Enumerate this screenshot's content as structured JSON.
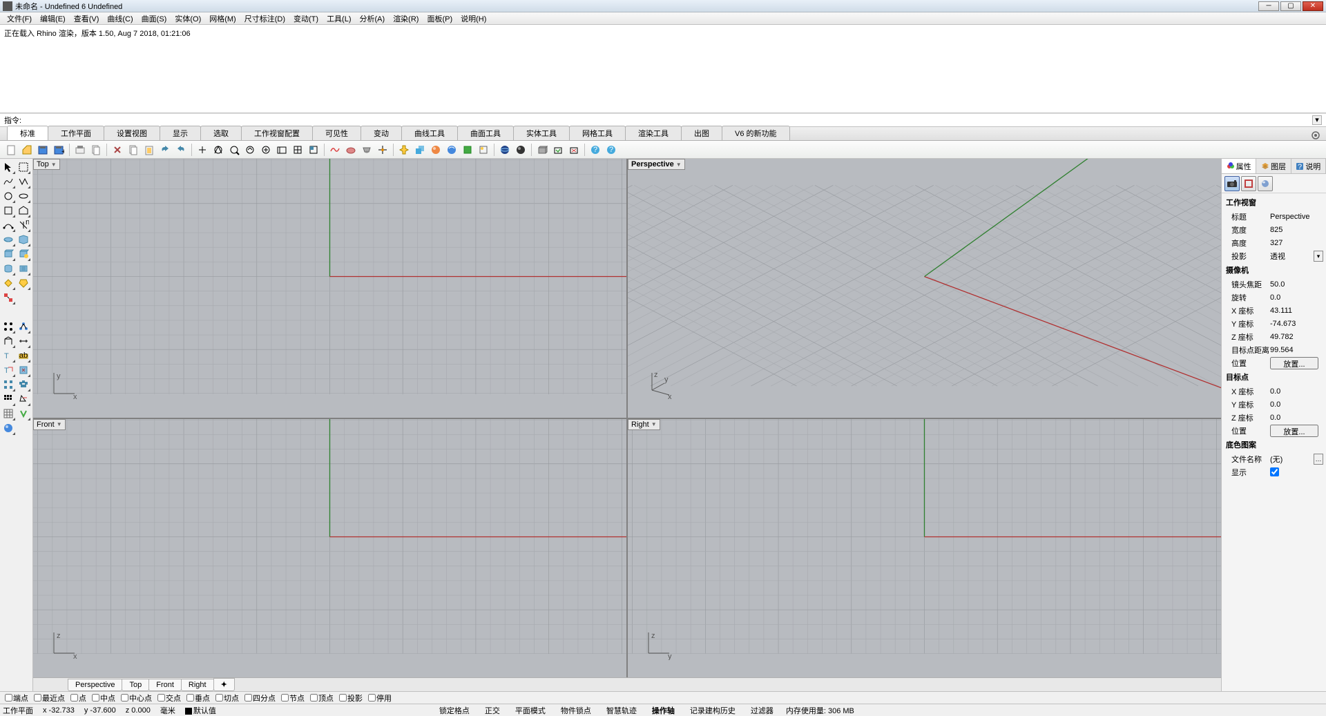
{
  "window": {
    "title": "未命名 - Undefined 6 Undefined"
  },
  "menubar": [
    "文件(F)",
    "编辑(E)",
    "查看(V)",
    "曲线(C)",
    "曲面(S)",
    "实体(O)",
    "网格(M)",
    "尺寸标注(D)",
    "变动(T)",
    "工具(L)",
    "分析(A)",
    "渲染(R)",
    "面板(P)",
    "说明(H)"
  ],
  "command_history": "正在载入 Rhino 渲染，版本 1.50, Aug  7 2018, 01:21:06",
  "command_prompt": "指令:",
  "toolbar_tabs": [
    "标准",
    "工作平面",
    "设置视图",
    "显示",
    "选取",
    "工作视窗配置",
    "可见性",
    "变动",
    "曲线工具",
    "曲面工具",
    "实体工具",
    "网格工具",
    "渲染工具",
    "出图",
    "V6 的新功能"
  ],
  "viewports": {
    "top_left": "Top",
    "top_right": "Perspective",
    "bottom_left": "Front",
    "bottom_right": "Right",
    "active": "Perspective"
  },
  "viewport_tabs": [
    "Perspective",
    "Top",
    "Front",
    "Right"
  ],
  "right_panel": {
    "tabs": [
      {
        "icon": "circle-multi",
        "label": "属性"
      },
      {
        "icon": "layers",
        "label": "图层"
      },
      {
        "icon": "help",
        "label": "说明"
      }
    ],
    "sections": {
      "viewport_title": "工作视窗",
      "viewport": {
        "title_label": "标题",
        "title_value": "Perspective",
        "width_label": "宽度",
        "width_value": "825",
        "height_label": "高度",
        "height_value": "327",
        "projection_label": "投影",
        "projection_value": "透视"
      },
      "camera_title": "摄像机",
      "camera": {
        "focal_label": "镜头焦距",
        "focal_value": "50.0",
        "rotation_label": "旋转",
        "rotation_value": "0.0",
        "x_label": "X 座标",
        "x_value": "43.111",
        "y_label": "Y 座标",
        "y_value": "-74.673",
        "z_label": "Z 座标",
        "z_value": "49.782",
        "dist_label": "目标点距离",
        "dist_value": "99.564",
        "pos_label": "位置",
        "pos_button": "放置..."
      },
      "target_title": "目标点",
      "target": {
        "x_label": "X 座标",
        "x_value": "0.0",
        "y_label": "Y 座标",
        "y_value": "0.0",
        "z_label": "Z 座标",
        "z_value": "0.0",
        "pos_label": "位置",
        "pos_button": "放置..."
      },
      "wallpaper_title": "底色图案",
      "wallpaper": {
        "file_label": "文件名称",
        "file_value": "(无)",
        "show_label": "显示"
      }
    }
  },
  "osnap": [
    "端点",
    "最近点",
    "点",
    "中点",
    "中心点",
    "交点",
    "垂点",
    "切点",
    "四分点",
    "节点",
    "顶点",
    "投影",
    "停用"
  ],
  "statusbar": {
    "cplane": "工作平面",
    "x": "x -32.733",
    "y": "y -37.600",
    "z": "z 0.000",
    "units": "毫米",
    "layer": "默认值",
    "items": [
      "锁定格点",
      "正交",
      "平面模式",
      "物件锁点",
      "智慧轨迹",
      "操作轴",
      "记录建构历史",
      "过滤器"
    ],
    "memory": "内存使用量: 306 MB"
  },
  "colors": {
    "grid_bg": "#b8bbc0",
    "grid_minor": "#a8abb0",
    "grid_major": "#989ba0",
    "axis_x": "#b03030",
    "axis_y": "#308030",
    "axis_z": "#3030b0"
  }
}
